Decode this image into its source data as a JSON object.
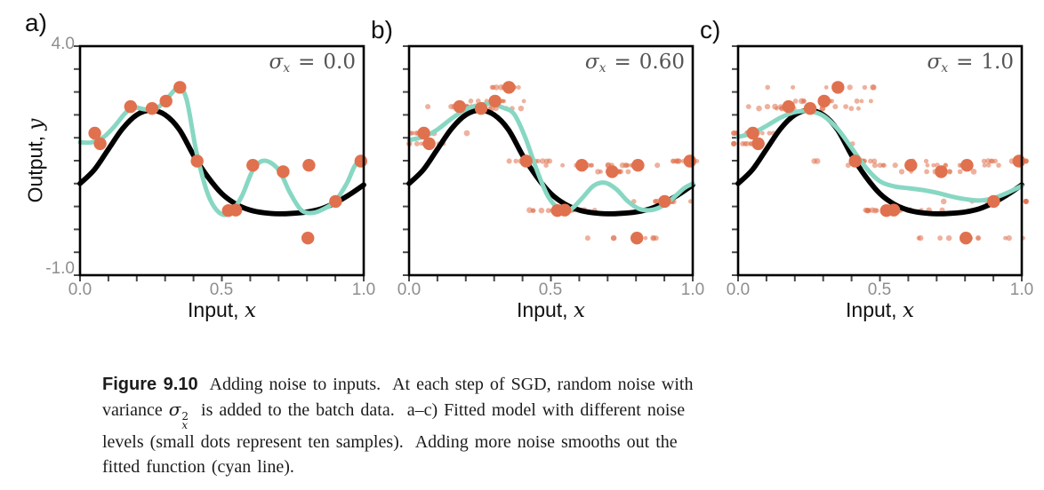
{
  "figure": {
    "panels": [
      {
        "tag": "a)",
        "sigma": {
          "symbol": "σ",
          "sub": "x",
          "eq": "=",
          "value": "0.0"
        }
      },
      {
        "tag": "b)",
        "sigma": {
          "symbol": "σ",
          "sub": "x",
          "eq": "=",
          "value": "0.60"
        }
      },
      {
        "tag": "c)",
        "sigma": {
          "symbol": "σ",
          "sub": "x",
          "eq": "=",
          "value": "1.0"
        }
      }
    ],
    "axes": {
      "x_title_prefix": "Input, ",
      "x_title_var": "x",
      "y_title_prefix": "Output, ",
      "y_title_var": "y",
      "x_tick_labels": [
        "0.0",
        "0.5",
        "1.0"
      ],
      "y_tick_labels": [
        "4.0",
        "-1.0"
      ]
    }
  },
  "caption": {
    "label": "Figure 9.10",
    "line1": "  Adding noise to inputs.  At each step of SGD, random noise with",
    "line2_pre": "variance ",
    "math": {
      "base": "σ",
      "sup": "2",
      "sub": "x"
    },
    "line2_post": "  is added to the batch data.  a–c) Fitted model with different noise",
    "line3": "levels (small dots represent ten samples).  Adding more noise smooths out the",
    "line4": "fitted function (cyan line)."
  },
  "colors": {
    "data_points": "#e0714e",
    "fitted_curve": "#87d7c3",
    "true_function": "#000000",
    "frame": "#000000",
    "ticks": "#4a4a4a",
    "tick_labels": "#8e8e8e",
    "annotation": "#555555"
  },
  "chart_data": {
    "type": "line",
    "x_range": [
      0,
      1
    ],
    "y_range": [
      -1,
      4
    ],
    "x_minor_tick_step": 0.1,
    "y_minor_tick_step": 0.5,
    "x_labeled_ticks": [
      0.0,
      0.5,
      1.0
    ],
    "y_labeled_ticks": [
      4.0,
      -1.0
    ],
    "xlabel": "Input, x",
    "ylabel": "Output, y",
    "legend": "none",
    "grid": false,
    "samples_per_point": 10,
    "data_points": [
      [
        0.052,
        2.1
      ],
      [
        0.071,
        1.87
      ],
      [
        0.178,
        2.68
      ],
      [
        0.254,
        2.64
      ],
      [
        0.303,
        2.8
      ],
      [
        0.352,
        3.1
      ],
      [
        0.413,
        1.49
      ],
      [
        0.523,
        0.41
      ],
      [
        0.549,
        0.42
      ],
      [
        0.609,
        1.4
      ],
      [
        0.716,
        1.26
      ],
      [
        0.807,
        1.4
      ],
      [
        0.803,
        -0.19
      ],
      [
        0.901,
        0.61
      ],
      [
        0.99,
        1.49
      ]
    ],
    "true_function": {
      "x": [
        0,
        0.05,
        0.1,
        0.15,
        0.2,
        0.25,
        0.3,
        0.35,
        0.4,
        0.45,
        0.5,
        0.55,
        0.6,
        0.65,
        0.7,
        0.75,
        0.8,
        0.85,
        0.9,
        0.95,
        1.0
      ],
      "y": [
        1.0,
        1.3,
        1.75,
        2.2,
        2.5,
        2.6,
        2.5,
        2.18,
        1.62,
        1.15,
        0.78,
        0.55,
        0.42,
        0.36,
        0.34,
        0.35,
        0.38,
        0.45,
        0.58,
        0.76,
        0.97
      ]
    },
    "panels": [
      {
        "sigma_x": 0.0,
        "noise_sd": 0.0,
        "noise_seed": 1,
        "fitted_x": [
          0,
          0.04,
          0.08,
          0.12,
          0.16,
          0.19,
          0.23,
          0.27,
          0.31,
          0.345,
          0.375,
          0.41,
          0.45,
          0.49,
          0.53,
          0.57,
          0.61,
          0.65,
          0.7,
          0.74,
          0.78,
          0.82,
          0.86,
          0.9,
          0.94,
          0.97,
          1.0
        ],
        "fitted_y": [
          1.9,
          1.9,
          2.0,
          2.24,
          2.54,
          2.66,
          2.62,
          2.64,
          2.88,
          3.08,
          2.85,
          1.7,
          0.78,
          0.37,
          0.36,
          0.72,
          1.3,
          1.5,
          1.3,
          0.8,
          0.42,
          0.36,
          0.45,
          0.62,
          1.0,
          1.4,
          1.55
        ]
      },
      {
        "sigma_x": 0.6,
        "noise_sd": 0.055,
        "noise_seed": 7,
        "fitted_x": [
          0,
          0.05,
          0.1,
          0.15,
          0.2,
          0.25,
          0.29,
          0.33,
          0.37,
          0.41,
          0.45,
          0.49,
          0.53,
          0.57,
          0.61,
          0.65,
          0.69,
          0.73,
          0.77,
          0.81,
          0.85,
          0.89,
          0.93,
          0.97,
          1.0
        ],
        "fitted_y": [
          1.95,
          2.02,
          2.18,
          2.42,
          2.62,
          2.72,
          2.74,
          2.66,
          2.52,
          2.0,
          1.3,
          0.72,
          0.45,
          0.44,
          0.68,
          0.95,
          1.02,
          0.88,
          0.62,
          0.45,
          0.42,
          0.5,
          0.68,
          0.9,
          1.0
        ]
      },
      {
        "sigma_x": 1.0,
        "noise_sd": 0.092,
        "noise_seed": 3,
        "fitted_x": [
          0,
          0.05,
          0.1,
          0.15,
          0.2,
          0.25,
          0.3,
          0.35,
          0.4,
          0.45,
          0.5,
          0.55,
          0.6,
          0.65,
          0.7,
          0.75,
          0.8,
          0.85,
          0.9,
          0.95,
          1.0
        ],
        "fitted_y": [
          2.02,
          2.1,
          2.26,
          2.44,
          2.56,
          2.58,
          2.48,
          2.2,
          1.78,
          1.35,
          1.05,
          0.94,
          0.9,
          0.86,
          0.8,
          0.72,
          0.66,
          0.63,
          0.68,
          0.8,
          0.95
        ]
      }
    ]
  }
}
